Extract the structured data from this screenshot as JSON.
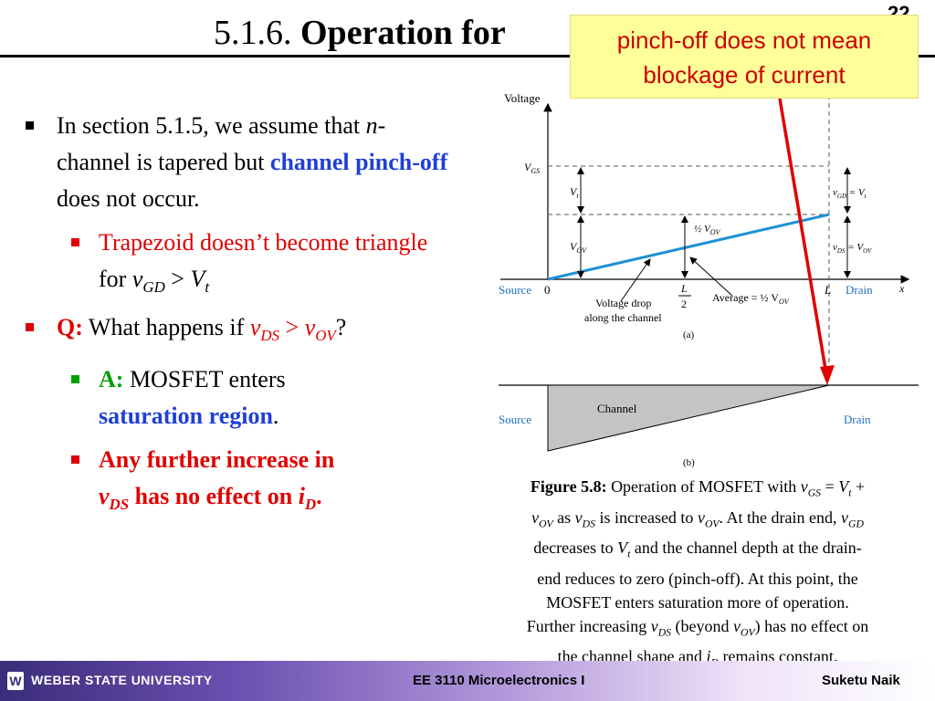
{
  "slide": {
    "title_number": "5.1.6.",
    "title_bold": "Operation for",
    "page_number": "22",
    "callout": {
      "line1": "pinch-off does not mean",
      "line2": "blockage of current"
    }
  },
  "bullets": {
    "b1_pre": "In section 5.1.5, we assume that ",
    "b1_n": "n",
    "b1_mid": "-channel is tapered but ",
    "b1_blue": "channel pinch-off",
    "b1_post": " does not occur.",
    "b2_red": "Trapezoid doesn’t become triangle",
    "b2_for": " for ",
    "b2_v": "v",
    "b2_sub": "GD",
    "b2_gt": " > ",
    "b2_V": "V",
    "b2_t": "t",
    "b3_q": "Q:",
    "b3_text": " What happens if ",
    "b3_v1": "v",
    "b3_ds": "DS",
    "b3_gt": " > ",
    "b3_v2": "v",
    "b3_ov": "OV",
    "b3_qm": "?",
    "b4_a": "A:",
    "b4_text": " MOSFET enters",
    "b4_blue": "saturation region",
    "b4_dot": ".",
    "b5_l1": "Any further increase in",
    "b5_v": "v",
    "b5_ds": "DS",
    "b5_mid": " has no effect on ",
    "b5_i": "i",
    "b5_d": "D",
    "b5_dot": "."
  },
  "figure": {
    "a": {
      "voltage": "Voltage",
      "vgs": "V",
      "vgs_sub": "GS",
      "vt": "V",
      "vt_sub": "t",
      "vov": "V",
      "vov_sub": "OV",
      "half_vov": "½ V",
      "half_vov_sub": "OV",
      "vgd_eq": "v",
      "vgd_sub": "GD",
      "vgd_rhs": " = V",
      "vgd_rhs_sub": "t",
      "vds_eq": "v",
      "vds_sub": "DS",
      "vds_rhs": " = V",
      "vds_rhs_sub": "OV",
      "source": "Source",
      "zero": "0",
      "l2_top": "L",
      "l2_bot": "2",
      "l": "L",
      "drain": "Drain",
      "x": "x",
      "drop1": "Voltage drop",
      "drop2": "along the channel",
      "average": "Average = ½ V",
      "average_sub": "OV",
      "label": "(a)"
    },
    "b": {
      "channel": "Channel",
      "source": "Source",
      "drain": "Drain",
      "label": "(b)"
    }
  },
  "caption": {
    "bold": "Figure 5.8:",
    "l1": " Operation of MOSFET with ",
    "l1_v": "v",
    "l1_gs": "GS",
    "l1_eq": " = ",
    "l1_V": "V",
    "l1_t": "t",
    "l1_plus": " +",
    "l2_v": "v",
    "l2_ov": "OV",
    "l2_as": " as ",
    "l2_v2": "v",
    "l2_ds": "DS",
    "l2_inc": " is increased to ",
    "l2_v3": "v",
    "l2_ov2": "OV",
    "l2_end": ".  At the drain end, ",
    "l2_v4": "v",
    "l2_gd": "GD",
    "l3": "decreases to ",
    "l3_V": "V",
    "l3_t": "t",
    "l3_end": " and the channel depth at the drain-",
    "l4": "end reduces to zero (pinch-off).  At this point, the",
    "l5": "MOSFET enters saturation more of operation.",
    "l6": "Further increasing ",
    "l6_v": "v",
    "l6_ds": "DS",
    "l6_mid": " (beyond ",
    "l6_v2": "v",
    "l6_ov": "OV",
    "l6_end": ") has no effect on",
    "l7": "the channel shape and ",
    "l7_i": "i",
    "l7_d": "D",
    "l7_end": " remains constant."
  },
  "footer": {
    "logo": "W",
    "university": "WEBER STATE UNIVERSITY",
    "course": "EE 3110 Microelectronics I",
    "author": "Suketu Naik"
  },
  "colors": {
    "red": "#e00000",
    "blue": "#1f3fd6",
    "green": "#00a000",
    "callout_bg": "#ffff99",
    "line_blue": "#1e90d6"
  }
}
